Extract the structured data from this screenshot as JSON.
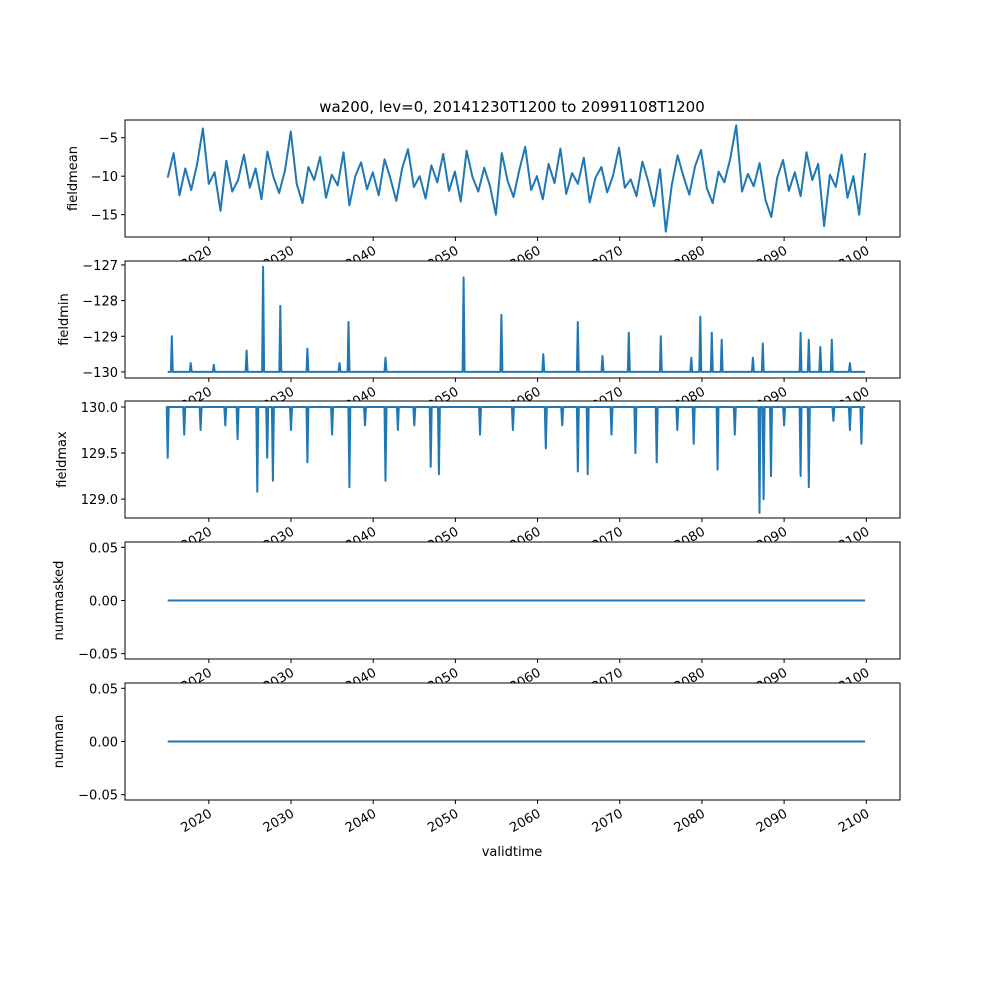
{
  "chart_data": {
    "type": "line",
    "title": "wa200, lev=0, 20141230T1200 to 20991108T1200",
    "xlabel": "validtime",
    "x_range": [
      2015.0,
      2099.85
    ],
    "xlim": [
      2009.8,
      2104.1
    ],
    "x_ticks": [
      2020,
      2030,
      2040,
      2050,
      2060,
      2070,
      2080,
      2090,
      2100
    ],
    "x_tick_labels": [
      "2020",
      "2030",
      "2040",
      "2050",
      "2060",
      "2070",
      "2080",
      "2090",
      "2100"
    ],
    "line_color": "#1f77b4",
    "grid": false,
    "subplots": [
      {
        "ylabel": "fieldmean",
        "ylim": [
          -17.9,
          -2.7
        ],
        "y_ticks": [
          -15,
          -10,
          -5
        ],
        "y_tick_labels": [
          "−15",
          "−10",
          "−5"
        ],
        "values": [
          -10.2,
          -7.0,
          -12.5,
          -9.0,
          -11.8,
          -8.5,
          -3.8,
          -11.0,
          -9.5,
          -14.5,
          -8.0,
          -12.0,
          -10.5,
          -7.2,
          -11.5,
          -9.0,
          -13.0,
          -6.8,
          -10.0,
          -12.2,
          -9.3,
          -4.2,
          -11.0,
          -13.5,
          -8.8,
          -10.5,
          -7.5,
          -12.8,
          -9.8,
          -11.2,
          -6.9,
          -13.8,
          -10.0,
          -8.2,
          -11.7,
          -9.5,
          -12.5,
          -7.8,
          -10.3,
          -13.2,
          -9.0,
          -6.5,
          -11.4,
          -10.0,
          -12.9,
          -8.6,
          -10.8,
          -7.1,
          -11.9,
          -9.4,
          -13.3,
          -6.7,
          -10.1,
          -12.0,
          -8.9,
          -11.3,
          -15.0,
          -7.0,
          -10.6,
          -12.7,
          -9.2,
          -6.2,
          -11.8,
          -10.0,
          -13.0,
          -8.4,
          -10.9,
          -6.4,
          -12.3,
          -9.6,
          -11.0,
          -7.6,
          -13.4,
          -10.2,
          -8.8,
          -12.1,
          -9.9,
          -6.3,
          -11.5,
          -10.4,
          -12.6,
          -8.1,
          -10.7,
          -13.9,
          -9.1,
          -17.2,
          -11.2,
          -7.3,
          -10.0,
          -12.4,
          -8.7,
          -6.6,
          -11.6,
          -13.5,
          -9.4,
          -10.8,
          -7.7,
          -3.4,
          -12.0,
          -9.7,
          -11.3,
          -8.3,
          -13.1,
          -15.3,
          -10.2,
          -7.9,
          -11.9,
          -9.5,
          -12.6,
          -6.9,
          -10.5,
          -8.4,
          -16.5,
          -9.8,
          -11.4,
          -7.2,
          -12.8,
          -10.0,
          -15.0,
          -7.0
        ]
      },
      {
        "ylabel": "fieldmin",
        "ylim": [
          -130.17,
          -126.89
        ],
        "y_ticks": [
          -130,
          -129,
          -128,
          -127
        ],
        "y_tick_labels": [
          "−130",
          "−129",
          "−128",
          "−127"
        ],
        "baseline": -130,
        "spikes": [
          [
            2015.5,
            -129.0
          ],
          [
            2017.8,
            -129.75
          ],
          [
            2020.6,
            -129.8
          ],
          [
            2024.6,
            -129.4
          ],
          [
            2026.6,
            -127.05
          ],
          [
            2028.7,
            -128.15
          ],
          [
            2032.0,
            -129.35
          ],
          [
            2035.9,
            -129.75
          ],
          [
            2037.0,
            -128.6
          ],
          [
            2041.5,
            -129.6
          ],
          [
            2051.0,
            -127.35
          ],
          [
            2055.6,
            -128.4
          ],
          [
            2060.7,
            -129.5
          ],
          [
            2064.9,
            -128.6
          ],
          [
            2067.9,
            -129.55
          ],
          [
            2071.1,
            -128.9
          ],
          [
            2075.0,
            -129.0
          ],
          [
            2078.7,
            -129.6
          ],
          [
            2079.8,
            -128.45
          ],
          [
            2081.2,
            -128.9
          ],
          [
            2082.4,
            -129.1
          ],
          [
            2086.2,
            -129.6
          ],
          [
            2087.4,
            -129.2
          ],
          [
            2092.0,
            -128.9
          ],
          [
            2093.0,
            -129.1
          ],
          [
            2094.4,
            -129.3
          ],
          [
            2095.8,
            -129.1
          ],
          [
            2098.0,
            -129.75
          ]
        ]
      },
      {
        "ylabel": "fieldmax",
        "ylim": [
          128.795,
          130.065
        ],
        "y_ticks": [
          129.0,
          129.5,
          130.0
        ],
        "y_tick_labels": [
          "129.0",
          "129.5",
          "130.0"
        ],
        "baseline": 130,
        "spikes": [
          [
            2015.0,
            129.45
          ],
          [
            2017.0,
            129.7
          ],
          [
            2019.0,
            129.75
          ],
          [
            2022.0,
            129.8
          ],
          [
            2023.5,
            129.65
          ],
          [
            2025.9,
            129.08
          ],
          [
            2027.1,
            129.45
          ],
          [
            2027.8,
            129.2
          ],
          [
            2030.0,
            129.75
          ],
          [
            2032.0,
            129.4
          ],
          [
            2035.0,
            129.7
          ],
          [
            2037.1,
            129.13
          ],
          [
            2039.0,
            129.8
          ],
          [
            2041.5,
            129.2
          ],
          [
            2043.0,
            129.75
          ],
          [
            2045.0,
            129.8
          ],
          [
            2047.0,
            129.35
          ],
          [
            2048.0,
            129.27
          ],
          [
            2053.0,
            129.7
          ],
          [
            2057.0,
            129.75
          ],
          [
            2061.0,
            129.55
          ],
          [
            2063.0,
            129.8
          ],
          [
            2064.9,
            129.3
          ],
          [
            2066.1,
            129.27
          ],
          [
            2069.0,
            129.7
          ],
          [
            2071.9,
            129.5
          ],
          [
            2074.5,
            129.4
          ],
          [
            2077.0,
            129.75
          ],
          [
            2079.0,
            129.6
          ],
          [
            2081.9,
            129.32
          ],
          [
            2084.0,
            129.7
          ],
          [
            2087.0,
            128.85
          ],
          [
            2087.5,
            129.0
          ],
          [
            2088.4,
            129.25
          ],
          [
            2090.0,
            129.8
          ],
          [
            2092.0,
            129.25
          ],
          [
            2093.0,
            129.13
          ],
          [
            2096.0,
            129.85
          ],
          [
            2098.0,
            129.75
          ],
          [
            2099.4,
            129.6
          ]
        ]
      },
      {
        "ylabel": "nummasked",
        "ylim": [
          -0.055,
          0.055
        ],
        "y_ticks": [
          -0.05,
          0.0,
          0.05
        ],
        "y_tick_labels": [
          "−0.05",
          "0.00",
          "0.05"
        ],
        "constant": 0
      },
      {
        "ylabel": "numnan",
        "ylim": [
          -0.055,
          0.055
        ],
        "y_ticks": [
          -0.05,
          0.0,
          0.05
        ],
        "y_tick_labels": [
          "−0.05",
          "0.00",
          "0.05"
        ],
        "constant": 0
      }
    ]
  }
}
